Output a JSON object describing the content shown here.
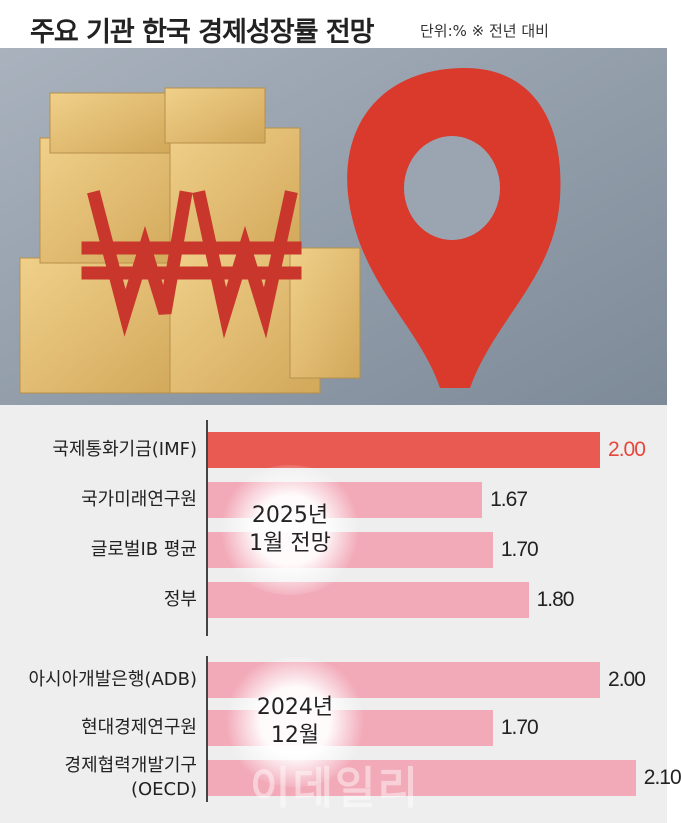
{
  "header": {
    "title": "주요 기관 한국 경제성장률 전망",
    "note": "단위:% ※ 전년 대비",
    "watermark": "이데일리"
  },
  "chart_data": [
    {
      "type": "bar",
      "annotation": "2025년\n1월 전망",
      "categories": [
        "국제통화기금(IMF)",
        "국가미래연구원",
        "글로벌IB 평균",
        "정부"
      ],
      "values": [
        2.0,
        1.67,
        1.7,
        1.8
      ],
      "value_labels": [
        "2.00",
        "1.67",
        "1.70",
        "1.80"
      ],
      "colors": [
        "#e85a52",
        "#f2a9b8",
        "#f2a9b8",
        "#f2a9b8"
      ],
      "label_colors": [
        "#e8453b",
        "#222222",
        "#222222",
        "#222222"
      ],
      "xlim": [
        0.9,
        2.2
      ]
    },
    {
      "type": "bar",
      "annotation": "2024년\n12월",
      "categories": [
        "아시아개발은행(ADB)",
        "현대경제연구원",
        "경제협력개발기구\n(OECD)"
      ],
      "values": [
        2.0,
        1.7,
        2.1
      ],
      "value_labels": [
        "2.00",
        "1.70",
        "2.10"
      ],
      "colors": [
        "#f2a9b8",
        "#f2a9b8",
        "#f2a9b8"
      ],
      "label_colors": [
        "#222222",
        "#222222",
        "#222222"
      ],
      "xlim": [
        0.9,
        2.2
      ]
    }
  ]
}
